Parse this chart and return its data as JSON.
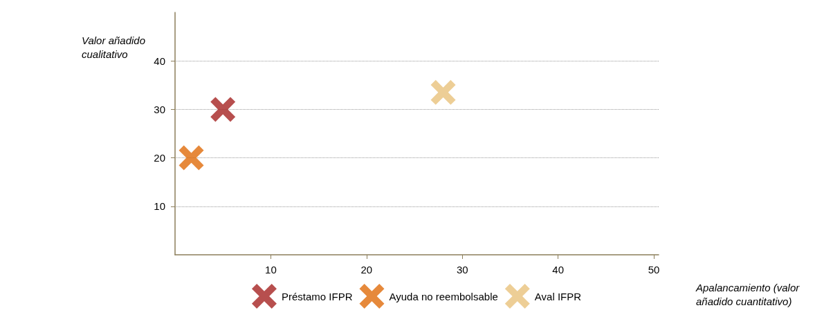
{
  "chart_data": {
    "type": "scatter",
    "xlabel": "Apalancamiento (valor\nañadido cuantitativo)",
    "ylabel": "Valor añadido\ncualitativo",
    "series": [
      {
        "name": "Préstamo IFPR",
        "color": "#a52322",
        "x": [
          5
        ],
        "values": [
          30
        ]
      },
      {
        "name": "Ayuda no reembolsable",
        "color": "#e06b0a",
        "x": [
          1.7
        ],
        "values": [
          20
        ]
      },
      {
        "name": "Aval IFPR",
        "color": "#e8c27c",
        "x": [
          28
        ],
        "values": [
          33.5
        ]
      }
    ],
    "xlim": [
      0,
      50.5
    ],
    "xticks": [
      10,
      20,
      30,
      40,
      50
    ],
    "ylim": [
      0,
      50
    ],
    "yticks": [
      10,
      20,
      30,
      40
    ],
    "grid": "y",
    "legend": "bottom",
    "marker": "cross"
  }
}
